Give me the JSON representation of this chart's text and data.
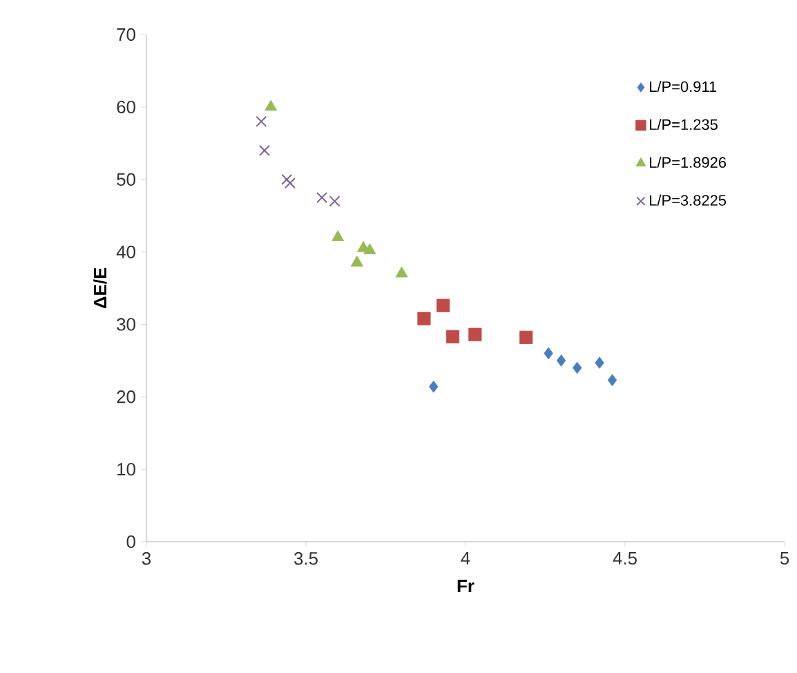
{
  "chart_data": {
    "type": "scatter",
    "xlabel": "Fr",
    "ylabel": "ΔE/E",
    "xlim": [
      3,
      5
    ],
    "ylim": [
      0,
      70
    ],
    "xticks": [
      3,
      3.5,
      4,
      4.5,
      5
    ],
    "yticks": [
      0,
      10,
      20,
      30,
      40,
      50,
      60,
      70
    ],
    "grid": false,
    "legend": "right",
    "series": [
      {
        "name": "L/P=0.911",
        "color": "#4a7ebb",
        "marker": "diamond",
        "x": [
          3.9,
          4.26,
          4.3,
          4.35,
          4.42,
          4.46
        ],
        "values": [
          21.4,
          26,
          25,
          24,
          24.7,
          22.3
        ]
      },
      {
        "name": "L/P=1.235",
        "color": "#be4b48",
        "marker": "square",
        "x": [
          3.87,
          3.93,
          3.96,
          4.03,
          4.19
        ],
        "values": [
          30.8,
          32.6,
          28.3,
          28.6,
          28.2
        ]
      },
      {
        "name": "L/P=1.8926",
        "color": "#98b954",
        "marker": "triangle",
        "x": [
          3.39,
          3.6,
          3.66,
          3.68,
          3.7,
          3.8
        ],
        "values": [
          60,
          42,
          38.5,
          40.5,
          40.2,
          37
        ]
      },
      {
        "name": "L/P=3.8225",
        "color": "#7d60a0",
        "marker": "cross",
        "x": [
          3.36,
          3.37,
          3.44,
          3.45,
          3.55,
          3.59
        ],
        "values": [
          58,
          54,
          50,
          49.5,
          47.5,
          47
        ]
      }
    ]
  }
}
